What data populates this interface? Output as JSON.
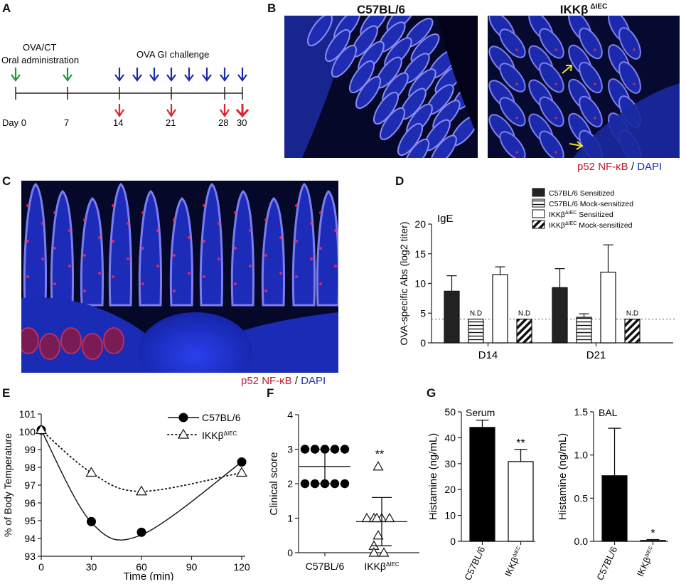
{
  "panels": {
    "a": {
      "label": "A",
      "oral_label_1": "OVA/CT",
      "oral_label_2": "Oral administration",
      "challenge_label": "OVA GI challenge",
      "days": [
        "Day 0",
        "7",
        "14",
        "21",
        "28",
        "30"
      ],
      "colors": {
        "green": "#1f9a3a",
        "blue": "#1e2ba3",
        "red": "#d8262b"
      }
    },
    "b": {
      "label": "B",
      "title_left": "C57BL/6",
      "title_right": "IKKβ",
      "title_right_sup": "ΔIEC",
      "caption_stain": "p52 NF-κB",
      "caption_sep": " / ",
      "caption_dapi": "DAPI"
    },
    "c": {
      "label": "C",
      "caption_stain": "p52 NF-κB",
      "caption_sep": " / ",
      "caption_dapi": "DAPI"
    },
    "d": {
      "label": "D"
    },
    "e": {
      "label": "E"
    },
    "f": {
      "label": "F"
    },
    "g": {
      "label": "G"
    }
  },
  "chart_data": [
    {
      "id": "D",
      "type": "bar",
      "annotation": "IgE",
      "ylabel": "OVA-specific Abs (log2 titer)",
      "ylim": [
        0,
        20
      ],
      "yticks": [
        0,
        5,
        10,
        15,
        20
      ],
      "categories": [
        "D14",
        "D21"
      ],
      "threshold": 4,
      "series": [
        {
          "name": "C57BL/6 Sensitized",
          "fill": "solid",
          "values": [
            8.7,
            9.3
          ],
          "errors": [
            2.6,
            3.2
          ],
          "labels": [
            "",
            ""
          ]
        },
        {
          "name": "C57BL/6 Mock-sensitized",
          "fill": "hlines",
          "values": [
            4.0,
            4.3
          ],
          "errors": [
            0,
            0.6
          ],
          "labels": [
            "N.D",
            ""
          ]
        },
        {
          "name": "IKKβΔIEC Sensitized",
          "fill": "white",
          "values": [
            11.5,
            11.9
          ],
          "errors": [
            1.3,
            4.6
          ],
          "labels": [
            "",
            ""
          ]
        },
        {
          "name": "IKKβΔIEC Mock-sensitized",
          "fill": "diag",
          "values": [
            4.0,
            4.0
          ],
          "errors": [
            0,
            0
          ],
          "labels": [
            "N.D",
            "N.D"
          ]
        }
      ],
      "legend": [
        {
          "name": "C57BL/6 Sensitized",
          "fill": "solid"
        },
        {
          "name": "C57BL/6 Mock-sensitized",
          "fill": "hlines"
        },
        {
          "name": "IKKβ",
          "sup": "ΔIEC",
          "suffix": " Sensitized",
          "fill": "white"
        },
        {
          "name": "IKKβ",
          "sup": "ΔIEC",
          "suffix": " Mock-sensitized",
          "fill": "diag"
        }
      ]
    },
    {
      "id": "E",
      "type": "line",
      "xlabel": "Time (min)",
      "ylabel": "% of Body Temperature",
      "xlim": [
        0,
        120
      ],
      "ylim": [
        93,
        101
      ],
      "xticks": [
        0,
        30,
        60,
        90,
        120
      ],
      "yticks": [
        93,
        94,
        95,
        96,
        97,
        98,
        99,
        100,
        101
      ],
      "series": [
        {
          "name": "C57BL/6",
          "marker": "circle",
          "line": "solid",
          "x": [
            0,
            30,
            60,
            120
          ],
          "y": [
            100.1,
            94.95,
            94.35,
            98.3
          ]
        },
        {
          "name": "IKKβ",
          "sup": "ΔIEC",
          "marker": "triangle",
          "line": "dotted",
          "x": [
            0,
            30,
            60,
            120
          ],
          "y": [
            100.1,
            97.7,
            96.65,
            97.7
          ]
        }
      ]
    },
    {
      "id": "F",
      "type": "scatter",
      "ylabel": "Clinical score",
      "ylim": [
        0,
        4
      ],
      "yticks": [
        0,
        1,
        2,
        3,
        4
      ],
      "categories": [
        "C57BL/6",
        "IKKβ"
      ],
      "category_sup": [
        "",
        "ΔIEC"
      ],
      "series": [
        {
          "name": "C57BL/6",
          "marker": "circle",
          "values": [
            3,
            3,
            3,
            3,
            3,
            2,
            2,
            2,
            2,
            2
          ],
          "mean": 2.5,
          "sd": 0.5
        },
        {
          "name": "IKKβΔIEC",
          "marker": "triangle",
          "values": [
            2.5,
            1,
            1,
            1,
            1,
            1,
            0.5,
            0.2,
            0,
            0
          ],
          "mean": 0.9,
          "sd": 0.7,
          "significance": "**"
        }
      ]
    },
    {
      "id": "G-serum",
      "type": "bar",
      "annotation": "Serum",
      "ylabel": "Histamine (ng/mL)",
      "ylim": [
        0,
        50
      ],
      "yticks": [
        0,
        10,
        20,
        30,
        40,
        50
      ],
      "categories": [
        "C57BL/6",
        "IKKβ"
      ],
      "category_sup": [
        "",
        "ΔIEC"
      ],
      "values": [
        44,
        30.8
      ],
      "errors": [
        2.8,
        4.7
      ],
      "fills": [
        "solid",
        "white"
      ],
      "significance": [
        "",
        "**"
      ]
    },
    {
      "id": "G-bal",
      "type": "bar",
      "annotation": "BAL",
      "ylabel": "Histamine (ng/mL)",
      "ylim": [
        0,
        1.5
      ],
      "yticks": [
        "0.0",
        "0.5",
        "1.0",
        "1.5"
      ],
      "categories": [
        "C57BL/6",
        "IKKβ"
      ],
      "category_sup": [
        "",
        "ΔIEC"
      ],
      "values": [
        0.76,
        0.01
      ],
      "errors": [
        0.55,
        0.01
      ],
      "fills": [
        "solid",
        "white"
      ],
      "significance": [
        "",
        "*"
      ]
    }
  ]
}
